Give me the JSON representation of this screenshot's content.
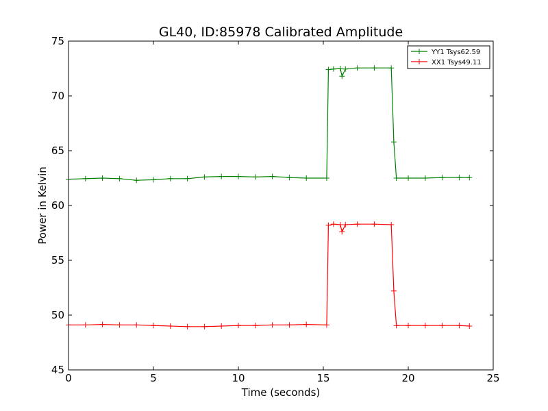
{
  "chart_data": {
    "type": "line",
    "title": "GL40, ID:85978 Calibrated Amplitude",
    "xlabel": "Time (seconds)",
    "ylabel": "Power in Kelvin",
    "xlim": [
      0,
      25
    ],
    "ylim": [
      45,
      75
    ],
    "xticks": [
      0,
      5,
      10,
      15,
      20,
      25
    ],
    "yticks": [
      45,
      50,
      55,
      60,
      65,
      70,
      75
    ],
    "grid": false,
    "legend_position": "top-right",
    "marker": "+",
    "series": [
      {
        "name": "YY1 Tsys62.59",
        "color": "#008000",
        "x": [
          0,
          1,
          2,
          3,
          4,
          5,
          6,
          7,
          8,
          9,
          10,
          11,
          12,
          13,
          14,
          15.2,
          15.3,
          15.6,
          16.0,
          16.1,
          16.3,
          17,
          18,
          19.0,
          19.15,
          19.3,
          20,
          21,
          22,
          23,
          23.6
        ],
        "y": [
          62.4,
          62.45,
          62.5,
          62.45,
          62.3,
          62.35,
          62.45,
          62.45,
          62.6,
          62.65,
          62.65,
          62.6,
          62.65,
          62.55,
          62.5,
          62.5,
          72.4,
          72.45,
          72.5,
          71.8,
          72.45,
          72.55,
          72.55,
          72.55,
          65.8,
          62.5,
          62.5,
          62.5,
          62.55,
          62.55,
          62.55
        ]
      },
      {
        "name": "XX1 Tsys49.11",
        "color": "#ff0000",
        "x": [
          0,
          1,
          2,
          3,
          4,
          5,
          6,
          7,
          8,
          9,
          10,
          11,
          12,
          13,
          14,
          15.2,
          15.3,
          15.6,
          16.0,
          16.1,
          16.3,
          17,
          18,
          19.0,
          19.15,
          19.3,
          20,
          21,
          22,
          23,
          23.6
        ],
        "y": [
          49.1,
          49.1,
          49.15,
          49.1,
          49.1,
          49.05,
          49.0,
          48.95,
          48.95,
          49.0,
          49.05,
          49.05,
          49.1,
          49.1,
          49.15,
          49.1,
          58.2,
          58.3,
          58.25,
          57.6,
          58.25,
          58.3,
          58.3,
          58.25,
          52.2,
          49.05,
          49.05,
          49.05,
          49.05,
          49.05,
          49.0
        ]
      }
    ]
  }
}
